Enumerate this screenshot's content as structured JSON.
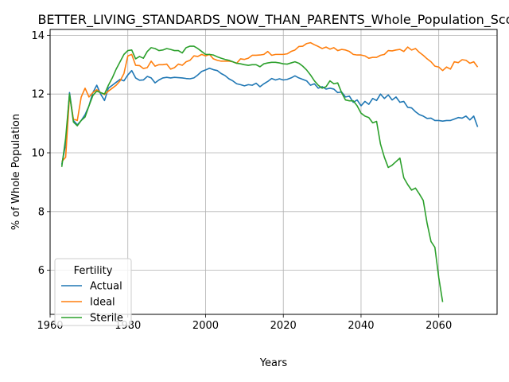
{
  "chart_data": {
    "type": "line",
    "title": "BETTER_LIVING_STANDARDS_NOW_THAN_PARENTS_Whole_Population_Scori",
    "xlabel": "Years",
    "ylabel": "% of Whole Population",
    "xlim": [
      1960,
      2075
    ],
    "ylim": [
      4.5,
      14.2
    ],
    "xticks": [
      1960,
      1980,
      2000,
      2020,
      2040,
      2060
    ],
    "yticks": [
      6,
      8,
      10,
      12,
      14
    ],
    "grid": true,
    "legend": {
      "title": "Fertility",
      "placement": "lower left"
    },
    "series": [
      {
        "name": "Actual",
        "color": "#1f77b4",
        "points": [
          [
            1963,
            9.6
          ],
          [
            1964,
            10.3
          ],
          [
            1965,
            12.05
          ],
          [
            1966,
            11.1
          ],
          [
            1967,
            10.95
          ],
          [
            1968,
            11.1
          ],
          [
            1969,
            11.3
          ],
          [
            1970,
            11.6
          ],
          [
            1971,
            12.05
          ],
          [
            1972,
            12.3
          ],
          [
            1973,
            12.0
          ],
          [
            1974,
            11.78
          ],
          [
            1975,
            12.2
          ],
          [
            1976,
            12.3
          ],
          [
            1977,
            12.4
          ],
          [
            1978,
            12.5
          ],
          [
            1979,
            12.45
          ],
          [
            1980,
            12.65
          ],
          [
            1981,
            12.8
          ],
          [
            1982,
            12.55
          ],
          [
            1983,
            12.47
          ],
          [
            1984,
            12.48
          ],
          [
            1985,
            12.6
          ],
          [
            1986,
            12.55
          ],
          [
            1987,
            12.38
          ],
          [
            1988,
            12.48
          ],
          [
            1989,
            12.55
          ],
          [
            1990,
            12.57
          ],
          [
            1991,
            12.55
          ],
          [
            1992,
            12.57
          ],
          [
            1993,
            12.56
          ],
          [
            1994,
            12.55
          ],
          [
            1995,
            12.53
          ],
          [
            1996,
            12.52
          ],
          [
            1997,
            12.55
          ],
          [
            1998,
            12.65
          ],
          [
            1999,
            12.77
          ],
          [
            2000,
            12.82
          ],
          [
            2001,
            12.88
          ],
          [
            2002,
            12.83
          ],
          [
            2003,
            12.8
          ],
          [
            2004,
            12.7
          ],
          [
            2005,
            12.63
          ],
          [
            2006,
            12.52
          ],
          [
            2007,
            12.45
          ],
          [
            2008,
            12.35
          ],
          [
            2009,
            12.32
          ],
          [
            2010,
            12.28
          ],
          [
            2011,
            12.32
          ],
          [
            2012,
            12.3
          ],
          [
            2013,
            12.37
          ],
          [
            2014,
            12.25
          ],
          [
            2015,
            12.35
          ],
          [
            2016,
            12.43
          ],
          [
            2017,
            12.53
          ],
          [
            2018,
            12.48
          ],
          [
            2019,
            12.52
          ],
          [
            2020,
            12.48
          ],
          [
            2021,
            12.5
          ],
          [
            2022,
            12.55
          ],
          [
            2023,
            12.62
          ],
          [
            2024,
            12.55
          ],
          [
            2025,
            12.5
          ],
          [
            2026,
            12.45
          ],
          [
            2027,
            12.3
          ],
          [
            2028,
            12.35
          ],
          [
            2029,
            12.2
          ],
          [
            2030,
            12.25
          ],
          [
            2031,
            12.17
          ],
          [
            2032,
            12.2
          ],
          [
            2033,
            12.17
          ],
          [
            2034,
            12.05
          ],
          [
            2035,
            12.07
          ],
          [
            2036,
            11.9
          ],
          [
            2037,
            11.93
          ],
          [
            2038,
            11.72
          ],
          [
            2039,
            11.8
          ],
          [
            2040,
            11.6
          ],
          [
            2041,
            11.75
          ],
          [
            2042,
            11.65
          ],
          [
            2043,
            11.85
          ],
          [
            2044,
            11.78
          ],
          [
            2045,
            12.0
          ],
          [
            2046,
            11.85
          ],
          [
            2047,
            11.97
          ],
          [
            2048,
            11.8
          ],
          [
            2049,
            11.9
          ],
          [
            2050,
            11.72
          ],
          [
            2051,
            11.75
          ],
          [
            2052,
            11.55
          ],
          [
            2053,
            11.53
          ],
          [
            2054,
            11.4
          ],
          [
            2055,
            11.3
          ],
          [
            2056,
            11.25
          ],
          [
            2057,
            11.17
          ],
          [
            2058,
            11.18
          ],
          [
            2059,
            11.1
          ],
          [
            2060,
            11.1
          ],
          [
            2061,
            11.08
          ],
          [
            2062,
            11.1
          ],
          [
            2063,
            11.1
          ],
          [
            2064,
            11.15
          ],
          [
            2065,
            11.2
          ],
          [
            2066,
            11.18
          ],
          [
            2067,
            11.25
          ],
          [
            2068,
            11.12
          ],
          [
            2069,
            11.25
          ],
          [
            2070,
            10.88
          ]
        ]
      },
      {
        "name": "Ideal",
        "color": "#ff7f0e",
        "points": [
          [
            1963,
            9.7
          ],
          [
            1964,
            9.85
          ],
          [
            1965,
            11.95
          ],
          [
            1966,
            11.15
          ],
          [
            1967,
            11.1
          ],
          [
            1968,
            11.9
          ],
          [
            1969,
            12.2
          ],
          [
            1970,
            11.9
          ],
          [
            1971,
            12.05
          ],
          [
            1972,
            12.15
          ],
          [
            1973,
            12.05
          ],
          [
            1974,
            11.98
          ],
          [
            1975,
            12.1
          ],
          [
            1976,
            12.2
          ],
          [
            1977,
            12.3
          ],
          [
            1978,
            12.45
          ],
          [
            1979,
            12.7
          ],
          [
            1980,
            13.3
          ],
          [
            1981,
            13.35
          ],
          [
            1982,
            12.98
          ],
          [
            1983,
            12.97
          ],
          [
            1984,
            12.87
          ],
          [
            1985,
            12.9
          ],
          [
            1986,
            13.12
          ],
          [
            1987,
            12.95
          ],
          [
            1988,
            13.0
          ],
          [
            1989,
            13.0
          ],
          [
            1990,
            13.02
          ],
          [
            1991,
            12.85
          ],
          [
            1992,
            12.9
          ],
          [
            1993,
            13.02
          ],
          [
            1994,
            12.98
          ],
          [
            1995,
            13.1
          ],
          [
            1996,
            13.15
          ],
          [
            1997,
            13.3
          ],
          [
            1998,
            13.28
          ],
          [
            1999,
            13.35
          ],
          [
            2000,
            13.3
          ],
          [
            2001,
            13.35
          ],
          [
            2002,
            13.2
          ],
          [
            2003,
            13.15
          ],
          [
            2004,
            13.12
          ],
          [
            2005,
            13.12
          ],
          [
            2006,
            13.12
          ],
          [
            2007,
            13.1
          ],
          [
            2008,
            13.05
          ],
          [
            2009,
            13.2
          ],
          [
            2010,
            13.18
          ],
          [
            2011,
            13.22
          ],
          [
            2012,
            13.32
          ],
          [
            2013,
            13.32
          ],
          [
            2014,
            13.33
          ],
          [
            2015,
            13.35
          ],
          [
            2016,
            13.45
          ],
          [
            2017,
            13.32
          ],
          [
            2018,
            13.35
          ],
          [
            2019,
            13.35
          ],
          [
            2020,
            13.35
          ],
          [
            2021,
            13.37
          ],
          [
            2022,
            13.45
          ],
          [
            2023,
            13.5
          ],
          [
            2024,
            13.62
          ],
          [
            2025,
            13.63
          ],
          [
            2026,
            13.72
          ],
          [
            2027,
            13.75
          ],
          [
            2028,
            13.68
          ],
          [
            2029,
            13.62
          ],
          [
            2030,
            13.55
          ],
          [
            2031,
            13.6
          ],
          [
            2032,
            13.53
          ],
          [
            2033,
            13.58
          ],
          [
            2034,
            13.48
          ],
          [
            2035,
            13.52
          ],
          [
            2036,
            13.5
          ],
          [
            2037,
            13.45
          ],
          [
            2038,
            13.35
          ],
          [
            2039,
            13.33
          ],
          [
            2040,
            13.33
          ],
          [
            2041,
            13.3
          ],
          [
            2042,
            13.22
          ],
          [
            2043,
            13.25
          ],
          [
            2044,
            13.25
          ],
          [
            2045,
            13.32
          ],
          [
            2046,
            13.35
          ],
          [
            2047,
            13.48
          ],
          [
            2048,
            13.47
          ],
          [
            2049,
            13.5
          ],
          [
            2050,
            13.52
          ],
          [
            2051,
            13.45
          ],
          [
            2052,
            13.6
          ],
          [
            2053,
            13.5
          ],
          [
            2054,
            13.55
          ],
          [
            2055,
            13.42
          ],
          [
            2056,
            13.32
          ],
          [
            2057,
            13.2
          ],
          [
            2058,
            13.1
          ],
          [
            2059,
            12.95
          ],
          [
            2060,
            12.92
          ],
          [
            2061,
            12.8
          ],
          [
            2062,
            12.92
          ],
          [
            2063,
            12.85
          ],
          [
            2064,
            13.1
          ],
          [
            2065,
            13.07
          ],
          [
            2066,
            13.17
          ],
          [
            2067,
            13.15
          ],
          [
            2068,
            13.05
          ],
          [
            2069,
            13.1
          ],
          [
            2070,
            12.92
          ]
        ]
      },
      {
        "name": "Sterile",
        "color": "#2ca02c",
        "points": [
          [
            1963,
            9.52
          ],
          [
            1964,
            10.5
          ],
          [
            1965,
            12.0
          ],
          [
            1966,
            11.05
          ],
          [
            1967,
            10.92
          ],
          [
            1968,
            11.1
          ],
          [
            1969,
            11.22
          ],
          [
            1970,
            11.6
          ],
          [
            1971,
            11.95
          ],
          [
            1972,
            12.1
          ],
          [
            1973,
            12.05
          ],
          [
            1974,
            12.0
          ],
          [
            1975,
            12.3
          ],
          [
            1976,
            12.55
          ],
          [
            1977,
            12.85
          ],
          [
            1978,
            13.1
          ],
          [
            1979,
            13.35
          ],
          [
            1980,
            13.48
          ],
          [
            1981,
            13.5
          ],
          [
            1982,
            13.2
          ],
          [
            1983,
            13.28
          ],
          [
            1984,
            13.22
          ],
          [
            1985,
            13.45
          ],
          [
            1986,
            13.58
          ],
          [
            1987,
            13.55
          ],
          [
            1988,
            13.48
          ],
          [
            1989,
            13.5
          ],
          [
            1990,
            13.55
          ],
          [
            1991,
            13.52
          ],
          [
            1992,
            13.48
          ],
          [
            1993,
            13.48
          ],
          [
            1994,
            13.4
          ],
          [
            1995,
            13.58
          ],
          [
            1996,
            13.63
          ],
          [
            1997,
            13.63
          ],
          [
            1998,
            13.55
          ],
          [
            1999,
            13.45
          ],
          [
            2000,
            13.35
          ],
          [
            2001,
            13.35
          ],
          [
            2002,
            13.33
          ],
          [
            2003,
            13.27
          ],
          [
            2004,
            13.22
          ],
          [
            2005,
            13.18
          ],
          [
            2006,
            13.15
          ],
          [
            2007,
            13.1
          ],
          [
            2008,
            13.05
          ],
          [
            2009,
            13.03
          ],
          [
            2010,
            13.0
          ],
          [
            2011,
            12.98
          ],
          [
            2012,
            13.0
          ],
          [
            2013,
            13.0
          ],
          [
            2014,
            12.93
          ],
          [
            2015,
            13.03
          ],
          [
            2016,
            13.06
          ],
          [
            2017,
            13.08
          ],
          [
            2018,
            13.08
          ],
          [
            2019,
            13.06
          ],
          [
            2020,
            13.03
          ],
          [
            2021,
            13.02
          ],
          [
            2022,
            13.06
          ],
          [
            2023,
            13.1
          ],
          [
            2024,
            13.05
          ],
          [
            2025,
            12.95
          ],
          [
            2026,
            12.82
          ],
          [
            2027,
            12.65
          ],
          [
            2028,
            12.45
          ],
          [
            2029,
            12.3
          ],
          [
            2030,
            12.2
          ],
          [
            2031,
            12.25
          ],
          [
            2032,
            12.45
          ],
          [
            2033,
            12.35
          ],
          [
            2034,
            12.38
          ],
          [
            2035,
            12.05
          ],
          [
            2036,
            11.8
          ],
          [
            2037,
            11.77
          ],
          [
            2038,
            11.77
          ],
          [
            2039,
            11.6
          ],
          [
            2040,
            11.35
          ],
          [
            2041,
            11.25
          ],
          [
            2042,
            11.2
          ],
          [
            2043,
            11.02
          ],
          [
            2044,
            11.07
          ],
          [
            2045,
            10.3
          ],
          [
            2046,
            9.85
          ],
          [
            2047,
            9.5
          ],
          [
            2048,
            9.58
          ],
          [
            2049,
            9.7
          ],
          [
            2050,
            9.82
          ],
          [
            2051,
            9.15
          ],
          [
            2052,
            8.92
          ],
          [
            2053,
            8.73
          ],
          [
            2054,
            8.8
          ],
          [
            2055,
            8.6
          ],
          [
            2056,
            8.38
          ],
          [
            2057,
            7.6
          ],
          [
            2058,
            6.98
          ],
          [
            2059,
            6.78
          ],
          [
            2060,
            5.75
          ],
          [
            2061,
            4.92
          ]
        ]
      }
    ]
  }
}
